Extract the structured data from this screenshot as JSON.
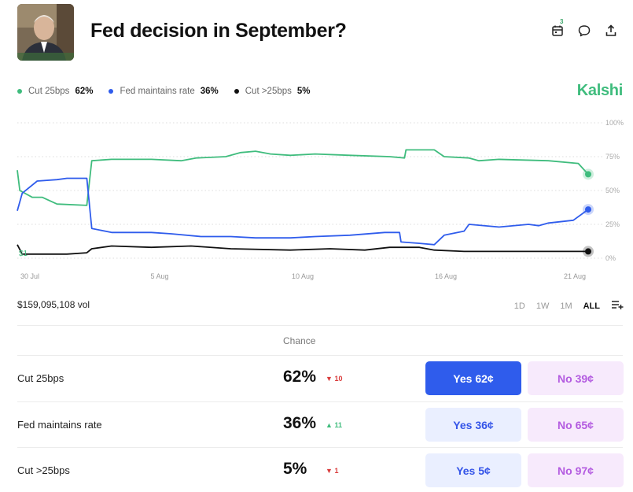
{
  "market": {
    "title": "Fed decision in September?"
  },
  "header_icons": {
    "calendar_badge": "3"
  },
  "legend": [
    {
      "label": "Cut 25bps",
      "value": "62%",
      "color": "#3fbc7d"
    },
    {
      "label": "Fed maintains rate",
      "value": "36%",
      "color": "#2f5cec"
    },
    {
      "label": "Cut >25bps",
      "value": "5%",
      "color": "#111111"
    }
  ],
  "brand": "Kalshi",
  "volume": "$159,095,108 vol",
  "ranges": [
    "1D",
    "1W",
    "1M",
    "ALL"
  ],
  "active_range": "ALL",
  "chance_header": "Chance",
  "outcomes": [
    {
      "label": "Cut 25bps",
      "chance": "62%",
      "delta": "10",
      "direction": "down",
      "yes": "Yes 62¢",
      "no": "No 39¢"
    },
    {
      "label": "Fed maintains rate",
      "chance": "36%",
      "delta": "11",
      "direction": "up",
      "yes": "Yes 36¢",
      "no": "No 65¢"
    },
    {
      "label": "Cut >25bps",
      "chance": "5%",
      "delta": "1",
      "direction": "down",
      "yes": "Yes 5¢",
      "no": "No 97¢"
    }
  ],
  "chart_data": {
    "type": "line",
    "x_tick_labels": [
      "30 Jul",
      "5 Aug",
      "10 Aug",
      "16 Aug",
      "21 Aug"
    ],
    "y_tick_labels": [
      "100%",
      "75%",
      "50%",
      "25%",
      "0%"
    ],
    "ylim": [
      0,
      100
    ],
    "grid": true,
    "inline_label": "$1",
    "series": [
      {
        "name": "Cut 25bps",
        "color": "#3fbc7d",
        "points": [
          [
            0,
            65
          ],
          [
            0.5,
            50
          ],
          [
            3,
            45
          ],
          [
            5,
            45
          ],
          [
            8,
            40
          ],
          [
            14,
            39
          ],
          [
            15,
            72
          ],
          [
            19,
            73
          ],
          [
            27,
            73
          ],
          [
            33,
            72
          ],
          [
            36,
            74
          ],
          [
            42,
            75
          ],
          [
            45,
            78
          ],
          [
            48,
            79
          ],
          [
            51,
            77
          ],
          [
            55,
            76
          ],
          [
            60,
            77
          ],
          [
            67,
            76
          ],
          [
            75,
            75
          ],
          [
            78,
            74
          ],
          [
            78.3,
            80
          ],
          [
            84,
            80
          ],
          [
            86,
            75
          ],
          [
            91,
            74
          ],
          [
            93,
            72
          ],
          [
            97,
            73
          ],
          [
            107,
            72
          ],
          [
            113,
            70
          ],
          [
            114,
            66
          ],
          [
            115,
            62
          ]
        ]
      },
      {
        "name": "Fed maintains rate",
        "color": "#2f5cec",
        "points": [
          [
            0,
            35
          ],
          [
            1,
            48
          ],
          [
            4,
            57
          ],
          [
            8,
            58
          ],
          [
            10,
            59
          ],
          [
            14,
            59
          ],
          [
            15,
            22
          ],
          [
            19,
            19
          ],
          [
            27,
            19
          ],
          [
            31,
            18
          ],
          [
            37,
            16
          ],
          [
            43,
            16
          ],
          [
            48,
            15
          ],
          [
            55,
            15
          ],
          [
            60,
            16
          ],
          [
            67,
            17
          ],
          [
            74,
            19
          ],
          [
            77,
            19
          ],
          [
            77.3,
            12
          ],
          [
            81,
            11
          ],
          [
            84,
            10
          ],
          [
            86,
            17
          ],
          [
            90,
            20
          ],
          [
            91,
            25
          ],
          [
            97,
            23
          ],
          [
            103,
            25
          ],
          [
            105,
            24
          ],
          [
            107,
            26
          ],
          [
            112,
            28
          ],
          [
            115,
            36
          ]
        ]
      },
      {
        "name": "Cut >25bps",
        "color": "#111111",
        "points": [
          [
            0,
            10
          ],
          [
            1,
            3
          ],
          [
            6,
            3
          ],
          [
            10,
            3
          ],
          [
            14,
            4
          ],
          [
            15,
            7
          ],
          [
            19,
            9
          ],
          [
            27,
            8
          ],
          [
            35,
            9
          ],
          [
            43,
            7
          ],
          [
            55,
            6
          ],
          [
            63,
            7
          ],
          [
            70,
            6
          ],
          [
            75,
            8
          ],
          [
            81,
            8
          ],
          [
            84,
            6
          ],
          [
            90,
            5
          ],
          [
            95,
            5
          ],
          [
            100,
            5
          ],
          [
            105,
            5
          ],
          [
            110,
            5
          ],
          [
            115,
            5
          ]
        ]
      }
    ]
  }
}
